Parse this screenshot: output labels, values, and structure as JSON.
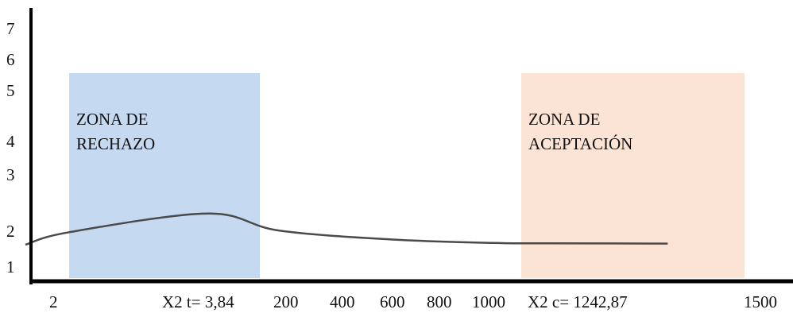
{
  "chart_data": {
    "type": "line",
    "y_tick_labels": [
      "7",
      "6",
      "5",
      "4",
      "3",
      "2",
      "1"
    ],
    "x_tick_labels": [
      "2",
      "X2 t= 3,84",
      "200",
      "400",
      "600",
      "800",
      "1000",
      "X2 c= 1242,87",
      "1500"
    ],
    "zones": [
      {
        "label_lines": [
          "ZONA DE",
          "RECHAZO"
        ],
        "color": "#c5d9f1"
      },
      {
        "label_lines": [
          "ZONA DE",
          "ACEPTACIÓN"
        ],
        "color": "#fbe4d5"
      }
    ],
    "curve": {
      "color": "#4a4a4a",
      "points": [
        {
          "x": 0,
          "y": 1.6
        },
        {
          "x": 2,
          "y": 1.95
        },
        {
          "x": 3.84,
          "y": 2.3
        },
        {
          "x": 200,
          "y": 2.0
        },
        {
          "x": 600,
          "y": 1.75
        },
        {
          "x": 1000,
          "y": 1.65
        },
        {
          "x": 1242.87,
          "y": 1.64
        },
        {
          "x": 1400,
          "y": 1.63
        }
      ]
    },
    "grid": false,
    "legend": "none"
  }
}
